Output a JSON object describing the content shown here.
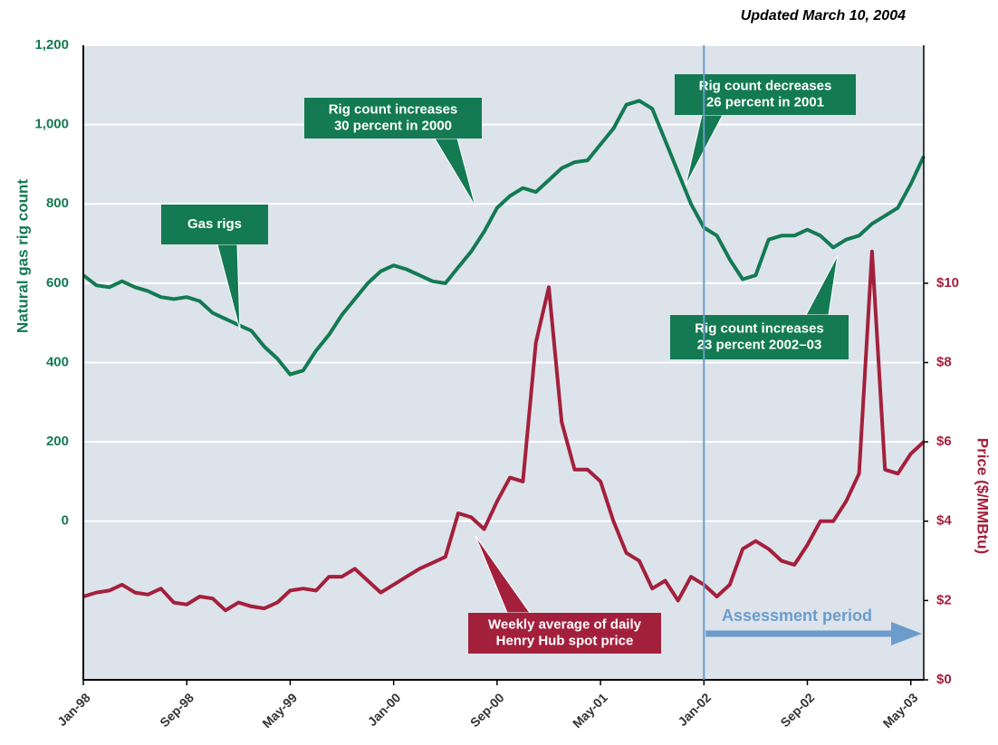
{
  "chart_data": {
    "type": "line",
    "note": "Updated March 10, 2004",
    "ylabel": "Natural gas rig count",
    "y2label": "Price ($/MMBtu)",
    "x": [
      "1998-01",
      "1998-02",
      "1998-03",
      "1998-04",
      "1998-05",
      "1998-06",
      "1998-07",
      "1998-08",
      "1998-09",
      "1998-10",
      "1998-11",
      "1998-12",
      "1999-01",
      "1999-02",
      "1999-03",
      "1999-04",
      "1999-05",
      "1999-06",
      "1999-07",
      "1999-08",
      "1999-09",
      "1999-10",
      "1999-11",
      "1999-12",
      "2000-01",
      "2000-02",
      "2000-03",
      "2000-04",
      "2000-05",
      "2000-06",
      "2000-07",
      "2000-08",
      "2000-09",
      "2000-10",
      "2000-11",
      "2000-12",
      "2001-01",
      "2001-02",
      "2001-03",
      "2001-04",
      "2001-05",
      "2001-06",
      "2001-07",
      "2001-08",
      "2001-09",
      "2001-10",
      "2001-11",
      "2001-12",
      "2002-01",
      "2002-02",
      "2002-03",
      "2002-04",
      "2002-05",
      "2002-06",
      "2002-07",
      "2002-08",
      "2002-09",
      "2002-10",
      "2002-11",
      "2002-12",
      "2003-01",
      "2003-02",
      "2003-03",
      "2003-04",
      "2003-05",
      "2003-06"
    ],
    "series": [
      {
        "name": "Gas rigs",
        "color": "#137a52",
        "axis": "y",
        "values": [
          620,
          595,
          590,
          605,
          590,
          580,
          565,
          560,
          565,
          555,
          525,
          510,
          495,
          480,
          440,
          410,
          370,
          380,
          430,
          470,
          520,
          560,
          600,
          630,
          645,
          635,
          620,
          605,
          600,
          640,
          680,
          730,
          790,
          820,
          840,
          830,
          860,
          890,
          905,
          910,
          950,
          990,
          1050,
          1060,
          1040,
          960,
          880,
          800,
          740,
          720,
          660,
          610,
          620,
          710,
          720,
          720,
          735,
          720,
          690,
          710,
          720,
          750,
          770,
          790,
          850,
          920
        ]
      },
      {
        "name": "Weekly average of daily Henry Hub spot price",
        "color": "#a3203c",
        "axis": "y2",
        "values": [
          2.1,
          2.2,
          2.25,
          2.4,
          2.2,
          2.15,
          2.3,
          1.95,
          1.9,
          2.1,
          2.05,
          1.75,
          1.95,
          1.85,
          1.8,
          1.95,
          2.25,
          2.3,
          2.25,
          2.6,
          2.6,
          2.8,
          2.5,
          2.2,
          2.4,
          2.6,
          2.8,
          2.95,
          3.1,
          4.2,
          4.1,
          3.8,
          4.5,
          5.1,
          5.0,
          8.5,
          9.9,
          6.5,
          5.3,
          5.3,
          5.0,
          4.0,
          3.2,
          3.0,
          2.3,
          2.5,
          2.0,
          2.6,
          2.4,
          2.1,
          2.4,
          3.3,
          3.5,
          3.3,
          3.0,
          2.9,
          3.4,
          4.0,
          4.0,
          4.5,
          5.2,
          10.8,
          5.3,
          5.2,
          5.7,
          6.0
        ]
      }
    ],
    "xlim": [
      "1998-01",
      "2003-06"
    ],
    "xticks": [
      {
        "value": "1998-01",
        "label": "Jan-98"
      },
      {
        "value": "1998-09",
        "label": "Sep-98"
      },
      {
        "value": "1999-05",
        "label": "May-99"
      },
      {
        "value": "2000-01",
        "label": "Jan-00"
      },
      {
        "value": "2000-09",
        "label": "Sep-00"
      },
      {
        "value": "2001-05",
        "label": "May-01"
      },
      {
        "value": "2002-01",
        "label": "Jan-02"
      },
      {
        "value": "2002-09",
        "label": "Sep-02"
      },
      {
        "value": "2003-05",
        "label": "May-03"
      }
    ],
    "ylim": [
      -400,
      1200
    ],
    "yticks": [
      0,
      200,
      400,
      600,
      800,
      {
        "value": 1000,
        "label": "1,000"
      },
      {
        "value": 1200,
        "label": "1,200"
      }
    ],
    "y2lim": [
      0,
      16
    ],
    "y2ticks": [
      {
        "value": 0,
        "label": "$0"
      },
      {
        "value": 2,
        "label": "$2"
      },
      {
        "value": 4,
        "label": "$4"
      },
      {
        "value": 6,
        "label": "$6"
      },
      {
        "value": 8,
        "label": "$8"
      },
      {
        "value": 10,
        "label": "$10"
      }
    ],
    "grid": true,
    "assessment": {
      "start": "2002-01",
      "label": "Assessment period"
    },
    "annotations": [
      {
        "lines": [
          "Gas rigs"
        ],
        "series": 0
      },
      {
        "lines": [
          "Rig count increases",
          "30 percent in 2000"
        ],
        "series": 0
      },
      {
        "lines": [
          "Rig count decreases",
          "26 percent in 2001"
        ],
        "series": 0
      },
      {
        "lines": [
          "Rig count increases",
          "23 percent 2002–03"
        ],
        "series": 0
      },
      {
        "lines": [
          "Weekly average of daily",
          "Henry Hub spot price"
        ],
        "series": 1
      }
    ]
  }
}
